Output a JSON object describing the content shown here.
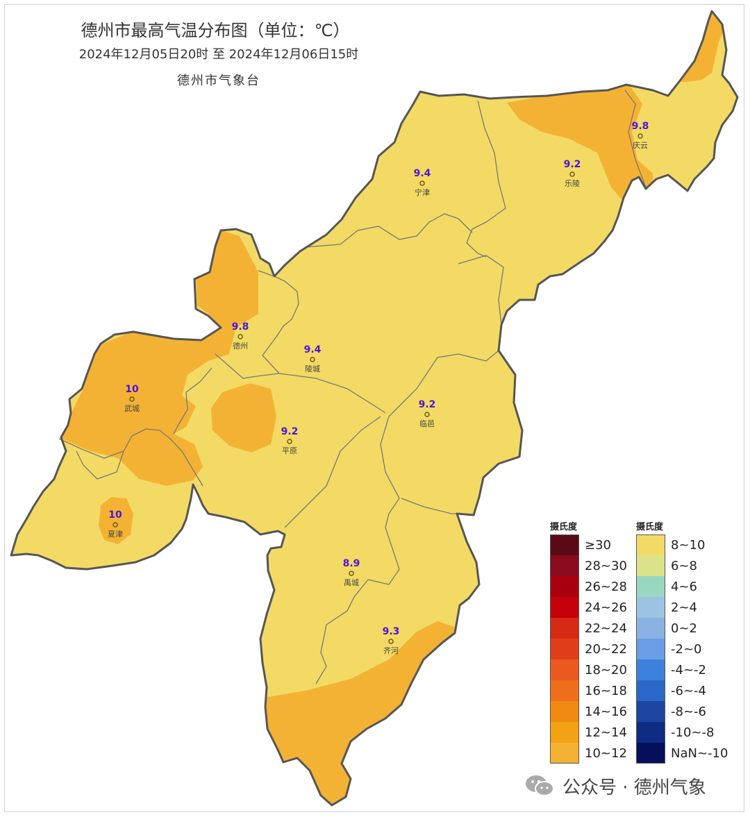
{
  "header": {
    "title": "德州市最高气温分布图（单位：℃）",
    "period": "2024年12月05日20时  至  2024年12月06日15时",
    "source": "德州市气象台"
  },
  "stations": [
    {
      "name": "宁津",
      "value": "9.4"
    },
    {
      "name": "乐陵",
      "value": "9.2"
    },
    {
      "name": "庆云",
      "value": "9.8"
    },
    {
      "name": "德州",
      "value": "9.8"
    },
    {
      "name": "陵城",
      "value": "9.4"
    },
    {
      "name": "武城",
      "value": "10"
    },
    {
      "name": "平原",
      "value": "9.2"
    },
    {
      "name": "临邑",
      "value": "9.2"
    },
    {
      "name": "夏津",
      "value": "10"
    },
    {
      "name": "禹城",
      "value": "8.9"
    },
    {
      "name": "齐河",
      "value": "9.3"
    }
  ],
  "legend": {
    "heading_left": "摄氏度",
    "heading_right": "摄氏度",
    "left": [
      {
        "label": "≥30",
        "color": "#5a0a14"
      },
      {
        "label": "28~30",
        "color": "#8a0a1e"
      },
      {
        "label": "26~28",
        "color": "#a8000f"
      },
      {
        "label": "24~26",
        "color": "#c40008"
      },
      {
        "label": "22~24",
        "color": "#d62a15"
      },
      {
        "label": "20~22",
        "color": "#e03e1a"
      },
      {
        "label": "18~20",
        "color": "#ea5a20"
      },
      {
        "label": "16~18",
        "color": "#ee6e1c"
      },
      {
        "label": "14~16",
        "color": "#f08a12"
      },
      {
        "label": "12~14",
        "color": "#f2a214"
      },
      {
        "label": "10~12",
        "color": "#f4b234"
      }
    ],
    "right": [
      {
        "label": "8~10",
        "color": "#f3da64"
      },
      {
        "label": "6~8",
        "color": "#dce28a"
      },
      {
        "label": "4~6",
        "color": "#98d8c0"
      },
      {
        "label": "2~4",
        "color": "#9cc4e2"
      },
      {
        "label": "0~2",
        "color": "#8ab2e2"
      },
      {
        "label": "-2~0",
        "color": "#6a9ee6"
      },
      {
        "label": "-4~-2",
        "color": "#3c82dc"
      },
      {
        "label": "-6~-4",
        "color": "#2a68c8"
      },
      {
        "label": "-8~-6",
        "color": "#1c46a0"
      },
      {
        "label": "-10~-8",
        "color": "#0e2c82"
      },
      {
        "label": "NaN~-10",
        "color": "#04105c"
      }
    ]
  },
  "watermark": {
    "text": "公众号 · 德州气象",
    "icon": "wechat-icon"
  }
}
